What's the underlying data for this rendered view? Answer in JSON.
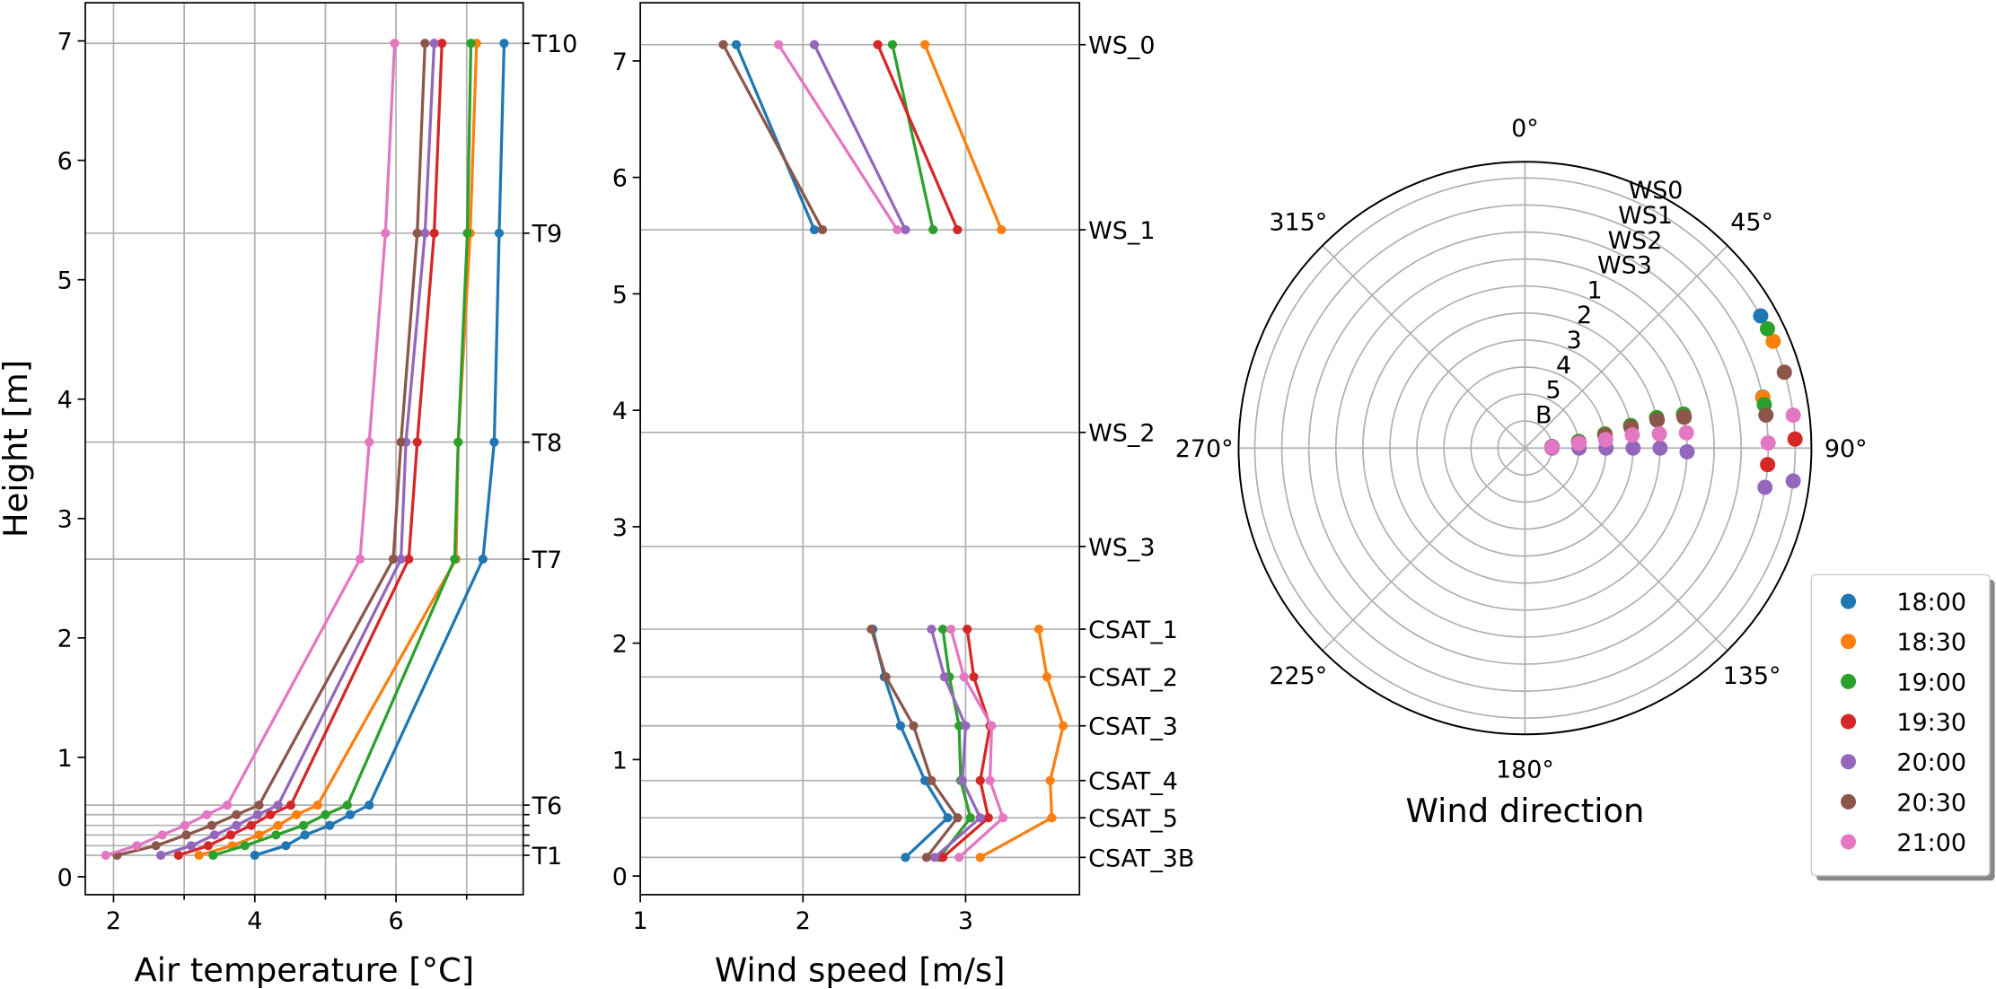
{
  "chart_data": [
    {
      "type": "line",
      "x_label": "Air temperature [°C]",
      "y_label": "Height [m]",
      "y": [
        0.18,
        0.26,
        0.35,
        0.43,
        0.52,
        0.6,
        2.66,
        3.64,
        5.39,
        6.98
      ],
      "sensor_labels": [
        "T1",
        null,
        null,
        null,
        null,
        "T6",
        "T7",
        "T8",
        "T9",
        "T10"
      ],
      "sensor_label_color": "#000080",
      "xlim": [
        1.6,
        7.8
      ],
      "xticks": [
        2,
        4,
        6
      ],
      "xminor": [
        3,
        5,
        7
      ],
      "ylim": [
        -0.15,
        7.32
      ],
      "yticks": [
        0,
        1,
        2,
        3,
        4,
        5,
        6,
        7
      ],
      "series": [
        {
          "color": "#1f77b4",
          "values": [
            4.0,
            4.44,
            4.71,
            5.06,
            5.35,
            5.62,
            7.23,
            7.39,
            7.46,
            7.53
          ]
        },
        {
          "color": "#ff7f0e",
          "values": [
            3.21,
            3.68,
            4.06,
            4.33,
            4.59,
            4.89,
            6.85,
            6.88,
            7.05,
            7.14
          ]
        },
        {
          "color": "#2ca02c",
          "values": [
            3.41,
            3.86,
            4.3,
            4.69,
            5.0,
            5.31,
            6.83,
            6.88,
            7.01,
            7.06
          ]
        },
        {
          "color": "#d62728",
          "values": [
            2.92,
            3.34,
            3.66,
            3.95,
            4.22,
            4.51,
            6.18,
            6.3,
            6.54,
            6.65
          ]
        },
        {
          "color": "#9467bd",
          "values": [
            2.67,
            3.1,
            3.43,
            3.74,
            4.04,
            4.33,
            6.07,
            6.14,
            6.41,
            6.54
          ]
        },
        {
          "color": "#8c564b",
          "values": [
            2.05,
            2.6,
            3.03,
            3.39,
            3.74,
            4.06,
            5.96,
            6.07,
            6.3,
            6.41
          ]
        },
        {
          "color": "#e377c2",
          "values": [
            1.89,
            2.33,
            2.69,
            3.01,
            3.32,
            3.61,
            5.49,
            5.62,
            5.85,
            5.98
          ]
        }
      ]
    },
    {
      "type": "line",
      "x_label": "Wind speed [m/s]",
      "y": [
        7.14,
        5.55,
        3.81,
        2.83,
        2.12,
        1.71,
        1.29,
        0.82,
        0.5,
        0.16
      ],
      "sensor_labels": [
        "WS_0",
        "WS_1",
        "WS_2",
        "WS_3",
        "CSAT_1",
        "CSAT_2",
        "CSAT_3",
        "CSAT_4",
        "CSAT_5",
        "CSAT_3B"
      ],
      "sensor_label_color": "#000080",
      "xlim": [
        1,
        3.7
      ],
      "xticks": [
        1,
        2,
        3
      ],
      "ylim": [
        -0.16,
        7.5
      ],
      "yticks": [
        0,
        1,
        2,
        3,
        4,
        5,
        6,
        7
      ],
      "series": [
        {
          "color": "#1f77b4",
          "values": [
            1.59,
            2.07,
            null,
            null,
            2.43,
            2.5,
            2.6,
            2.75,
            2.89,
            2.63
          ]
        },
        {
          "color": "#ff7f0e",
          "values": [
            2.75,
            3.22,
            null,
            null,
            3.45,
            3.5,
            3.6,
            3.52,
            3.53,
            3.09
          ]
        },
        {
          "color": "#2ca02c",
          "values": [
            2.55,
            2.8,
            null,
            null,
            2.86,
            2.9,
            2.96,
            2.97,
            3.03,
            2.84
          ]
        },
        {
          "color": "#d62728",
          "values": [
            2.46,
            2.95,
            null,
            null,
            3.01,
            3.05,
            3.15,
            3.09,
            3.14,
            2.86
          ]
        },
        {
          "color": "#9467bd",
          "values": [
            2.07,
            2.63,
            null,
            null,
            2.79,
            2.87,
            3.0,
            2.98,
            3.09,
            2.81
          ]
        },
        {
          "color": "#8c564b",
          "values": [
            1.51,
            2.12,
            null,
            null,
            2.42,
            2.51,
            2.68,
            2.79,
            2.95,
            2.76
          ]
        },
        {
          "color": "#e377c2",
          "values": [
            1.85,
            2.58,
            null,
            null,
            2.91,
            2.99,
            3.16,
            3.15,
            3.23,
            2.96
          ]
        }
      ]
    },
    {
      "type": "polar-scatter",
      "x_label": "Wind direction",
      "r": [
        10,
        9,
        8,
        7,
        6,
        5,
        4,
        3,
        2,
        1
      ],
      "rlim": [
        0,
        10.6
      ],
      "rticks": [
        {
          "value": 1,
          "label": "B"
        },
        {
          "value": 2,
          "label": "5"
        },
        {
          "value": 3,
          "label": "4"
        },
        {
          "value": 4,
          "label": "3"
        },
        {
          "value": 5,
          "label": "2"
        },
        {
          "value": 6,
          "label": "1"
        },
        {
          "value": 7,
          "label": "WS3"
        },
        {
          "value": 8,
          "label": "WS2"
        },
        {
          "value": 9,
          "label": "WS1"
        },
        {
          "value": 10,
          "label": "WS0"
        }
      ],
      "thetaticks": [
        {
          "value": 0,
          "label": "0°"
        },
        {
          "value": 45,
          "label": "45°"
        },
        {
          "value": 90,
          "label": "90°"
        },
        {
          "value": 135,
          "label": "135°"
        },
        {
          "value": 180,
          "label": "180°"
        },
        {
          "value": 225,
          "label": "225°"
        },
        {
          "value": 270,
          "label": "270°"
        },
        {
          "value": 315,
          "label": "315°"
        }
      ],
      "legend": "lower right",
      "series": [
        {
          "name": "18:00",
          "color": "#1f77b4",
          "values": [
            60.7,
            77.9,
            null,
            null,
            78,
            77,
            78,
            80,
            83,
            87
          ]
        },
        {
          "name": "18:30",
          "color": "#ff7f0e",
          "values": [
            66.7,
            78,
            null,
            null,
            78,
            77,
            78,
            80,
            83,
            87
          ]
        },
        {
          "name": "19:00",
          "color": "#2ca02c",
          "values": [
            63.8,
            79.7,
            null,
            null,
            77.9,
            77,
            78,
            80,
            83,
            87
          ]
        },
        {
          "name": "19:30",
          "color": "#d62728",
          "values": [
            88.1,
            93.9,
            null,
            null,
            79,
            78,
            79,
            81,
            84,
            88
          ]
        },
        {
          "name": "20:00",
          "color": "#9467bd",
          "values": [
            97,
            99.3,
            null,
            null,
            91.3,
            90,
            90,
            90,
            90,
            90
          ]
        },
        {
          "name": "20:30",
          "color": "#8c564b",
          "values": [
            73.7,
            82.2,
            null,
            null,
            79,
            78,
            79,
            81,
            84,
            88
          ]
        },
        {
          "name": "21:00",
          "color": "#e377c2",
          "values": [
            83,
            88.8,
            null,
            null,
            84.6,
            84,
            83,
            84,
            85,
            88
          ]
        }
      ]
    }
  ]
}
